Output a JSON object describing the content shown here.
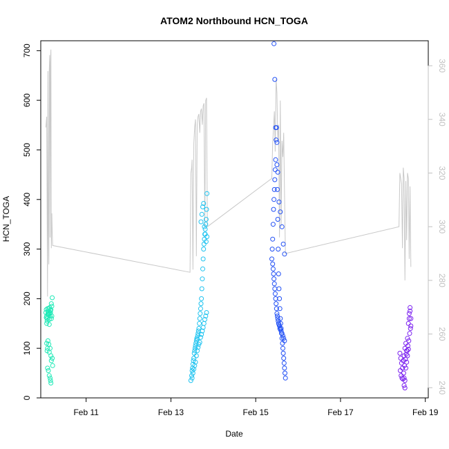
{
  "chart_data": {
    "type": "scatter",
    "title": "ATOM2 Northbound HCN_TOGA",
    "xlabel": "Date",
    "ylabel": "HCN_TOGA",
    "xlim": [
      9.93,
      19.07
    ],
    "ylim": [
      0,
      720
    ],
    "yticks": [
      0,
      100,
      200,
      300,
      400,
      500,
      600,
      700
    ],
    "xticks": [
      {
        "value": 11,
        "label": "Feb 11"
      },
      {
        "value": 13,
        "label": "Feb 13"
      },
      {
        "value": 15,
        "label": "Feb 15"
      },
      {
        "value": 17,
        "label": "Feb 17"
      },
      {
        "value": 19,
        "label": "Feb 19"
      }
    ],
    "y2lim": [
      236.2,
      369.3
    ],
    "y2ticks": [
      240,
      260,
      280,
      300,
      320,
      340,
      360
    ],
    "grid": false,
    "legend": "none",
    "point_colors": {
      "cluster1": "#1de9b6",
      "cluster2": "#1ec3f0",
      "cluster3": "#1f4ef5",
      "cluster4": "#7a1ff0"
    },
    "line_color": "#c8c8c8",
    "series": [
      {
        "type": "scatter",
        "color": "#1de9b6",
        "x": [
          10.05,
          10.06,
          10.07,
          10.08,
          10.09,
          10.1,
          10.11,
          10.12,
          10.13,
          10.14,
          10.15,
          10.16,
          10.17,
          10.18,
          10.19,
          10.2,
          10.06,
          10.07,
          10.08,
          10.1,
          10.11,
          10.12,
          10.13,
          10.14,
          10.16,
          10.18,
          10.19,
          10.07,
          10.08,
          10.09,
          10.1,
          10.12,
          10.13,
          10.15,
          10.17,
          10.18,
          10.2,
          10.21,
          10.09,
          10.11,
          10.13,
          10.15,
          10.16,
          10.17
        ],
        "y": [
          172,
          178,
          165,
          160,
          180,
          170,
          175,
          168,
          158,
          182,
          165,
          172,
          178,
          190,
          185,
          202,
          162,
          150,
          155,
          168,
          172,
          180,
          148,
          170,
          176,
          160,
          165,
          110,
          95,
          100,
          115,
          108,
          92,
          100,
          85,
          75,
          80,
          65,
          60,
          55,
          45,
          40,
          35,
          30
        ]
      },
      {
        "type": "scatter",
        "color": "#1ec3f0",
        "x": [
          13.47,
          13.49,
          13.5,
          13.51,
          13.52,
          13.53,
          13.54,
          13.55,
          13.56,
          13.57,
          13.58,
          13.59,
          13.6,
          13.61,
          13.62,
          13.63,
          13.64,
          13.65,
          13.66,
          13.67,
          13.68,
          13.69,
          13.7,
          13.71,
          13.72,
          13.73,
          13.74,
          13.75,
          13.76,
          13.77,
          13.78,
          13.79,
          13.8,
          13.81,
          13.82,
          13.83,
          13.84,
          13.85,
          13.5,
          13.52,
          13.54,
          13.56,
          13.58,
          13.6,
          13.62,
          13.64,
          13.66,
          13.68,
          13.7,
          13.72,
          13.74,
          13.76,
          13.78,
          13.8,
          13.82,
          13.84,
          13.71,
          13.73,
          13.75,
          13.77,
          13.79,
          13.81,
          13.83,
          13.85
        ],
        "y": [
          35,
          45,
          55,
          60,
          68,
          75,
          80,
          90,
          95,
          100,
          105,
          110,
          115,
          120,
          118,
          125,
          130,
          135,
          140,
          150,
          160,
          170,
          180,
          190,
          200,
          220,
          240,
          260,
          280,
          300,
          310,
          320,
          330,
          340,
          350,
          360,
          380,
          412,
          40,
          50,
          58,
          65,
          72,
          85,
          95,
          102,
          108,
          112,
          122,
          128,
          135,
          142,
          150,
          158,
          165,
          172,
          355,
          370,
          385,
          392,
          345,
          330,
          315,
          325
        ]
      },
      {
        "type": "scatter",
        "color": "#1f4ef5",
        "x": [
          15.38,
          15.39,
          15.4,
          15.41,
          15.42,
          15.43,
          15.44,
          15.45,
          15.46,
          15.47,
          15.48,
          15.49,
          15.5,
          15.51,
          15.52,
          15.53,
          15.54,
          15.55,
          15.56,
          15.57,
          15.58,
          15.59,
          15.6,
          15.61,
          15.62,
          15.63,
          15.64,
          15.65,
          15.66,
          15.67,
          15.68,
          15.69,
          15.7,
          15.4,
          15.41,
          15.42,
          15.43,
          15.44,
          15.45,
          15.46,
          15.47,
          15.48,
          15.49,
          15.5,
          15.51,
          15.52,
          15.53,
          15.54,
          15.55,
          15.56,
          15.57,
          15.58,
          15.6,
          15.62,
          15.64,
          15.66,
          15.68,
          15.43,
          15.45,
          15.47,
          15.5,
          15.52,
          15.55,
          15.58,
          15.62,
          15.65,
          15.68
        ],
        "y": [
          280,
          300,
          320,
          350,
          380,
          400,
          420,
          440,
          460,
          480,
          520,
          545,
          470,
          420,
          360,
          300,
          250,
          220,
          200,
          180,
          160,
          150,
          140,
          130,
          120,
          110,
          100,
          90,
          80,
          70,
          60,
          50,
          40,
          270,
          260,
          250,
          240,
          230,
          220,
          210,
          200,
          190,
          180,
          170,
          165,
          160,
          155,
          150,
          148,
          145,
          140,
          138,
          135,
          130,
          125,
          120,
          115,
          714,
          642,
          545,
          515,
          455,
          395,
          375,
          345,
          310,
          290
        ]
      },
      {
        "type": "scatter",
        "color": "#7a1ff0",
        "x": [
          18.4,
          18.42,
          18.44,
          18.46,
          18.48,
          18.5,
          18.52,
          18.54,
          18.56,
          18.58,
          18.6,
          18.62,
          18.64,
          18.66,
          18.41,
          18.43,
          18.45,
          18.47,
          18.49,
          18.51,
          18.53,
          18.55,
          18.57,
          18.59,
          18.61,
          18.63,
          18.65,
          18.5,
          18.52,
          18.54,
          18.56,
          18.58,
          18.6,
          18.62,
          18.64,
          18.66,
          18.5,
          18.52
        ],
        "y": [
          90,
          80,
          70,
          60,
          75,
          85,
          100,
          110,
          95,
          120,
          150,
          170,
          182,
          160,
          55,
          45,
          40,
          38,
          50,
          65,
          78,
          88,
          95,
          105,
          115,
          130,
          140,
          25,
          20,
          60,
          72,
          85,
          98,
          160,
          175,
          145,
          40,
          35
        ]
      },
      {
        "type": "line",
        "axis": "right",
        "color": "#c8c8c8",
        "x": [
          10.05,
          10.07,
          10.09,
          10.1,
          10.11,
          10.12,
          10.13,
          10.14,
          10.15,
          10.16,
          10.17,
          10.18,
          10.19,
          10.2,
          10.21,
          13.45,
          13.47,
          13.49,
          13.5,
          13.52,
          13.54,
          13.56,
          13.58,
          13.6,
          13.62,
          13.64,
          13.66,
          13.68,
          13.7,
          13.72,
          13.74,
          13.76,
          13.78,
          13.8,
          13.82,
          13.84,
          13.86,
          15.38,
          15.4,
          15.42,
          15.44,
          15.46,
          15.48,
          15.5,
          15.52,
          15.54,
          15.56,
          15.58,
          15.6,
          15.62,
          15.64,
          15.66,
          15.68,
          15.7,
          18.38,
          18.4,
          18.42,
          18.44,
          18.46,
          18.48,
          18.5,
          18.52,
          18.54,
          18.56,
          18.58,
          18.6,
          18.62,
          18.64,
          18.66
        ],
        "y": [
          337,
          341,
          274,
          358,
          300,
          286,
          358,
          364,
          296,
          361,
          366,
          292,
          305,
          298,
          293,
          283,
          320,
          322,
          325,
          284,
          331,
          337,
          340,
          289,
          338,
          341,
          342,
          335,
          343,
          344,
          338,
          345,
          346,
          300,
          347,
          348,
          300,
          318,
          331,
          337,
          343,
          328,
          355,
          350,
          333,
          338,
          296,
          347,
          300,
          332,
          326,
          335,
          312,
          290,
          300,
          320,
          318,
          316,
          292,
          322,
          318,
          280,
          317,
          295,
          320,
          318,
          288,
          315,
          285
        ]
      }
    ]
  }
}
